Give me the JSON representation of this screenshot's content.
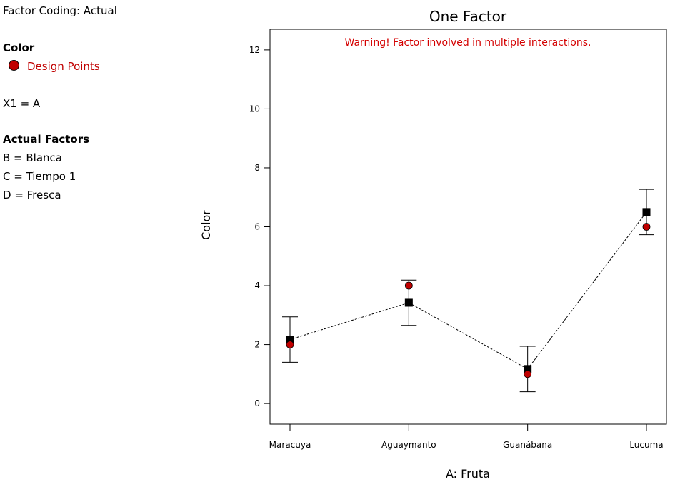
{
  "sidebar": {
    "factor_coding": "Factor Coding: Actual",
    "color_heading": "Color",
    "design_points": "Design Points",
    "x1": "X1 = A",
    "actual_factors_heading": "Actual Factors",
    "factors": [
      "B = Blanca",
      "C = Tiempo 1",
      "D = Fresca"
    ]
  },
  "colors": {
    "design_point": "#c00000",
    "warning": "#d40000"
  },
  "chart_data": {
    "type": "scatter",
    "title": "One Factor",
    "warning": "Warning! Factor involved in multiple interactions.",
    "xlabel": "A: Fruta",
    "ylabel": "Color",
    "categories": [
      "Maracuya",
      "Aguaymanto",
      "Guanábana",
      "Lucuma"
    ],
    "ylim": [
      -0.7,
      12.7
    ],
    "yticks": [
      0,
      2,
      4,
      6,
      8,
      10,
      12
    ],
    "predicted": [
      2.17,
      3.42,
      1.17,
      6.5
    ],
    "ci_low": [
      1.4,
      2.65,
      0.4,
      5.73
    ],
    "ci_high": [
      2.94,
      4.19,
      1.94,
      7.27
    ],
    "design_points": [
      2,
      4,
      1,
      6
    ]
  }
}
